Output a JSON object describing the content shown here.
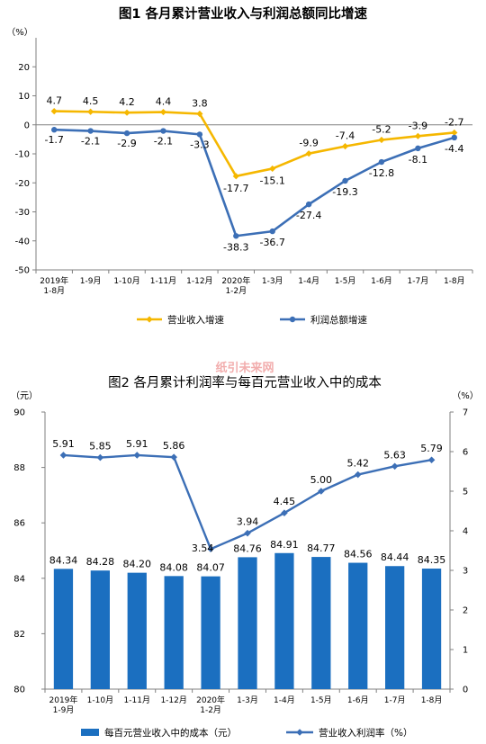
{
  "watermark": "纸引未来网",
  "chart_data": [
    {
      "type": "line",
      "title": "图1  各月累计营业收入与利润总额同比增速",
      "yunit": "（%）",
      "categories": [
        "2019年\n1-8月",
        "1-9月",
        "1-10月",
        "1-11月",
        "1-12月",
        "2020年\n1-2月",
        "1-3月",
        "1-4月",
        "1-5月",
        "1-6月",
        "1-7月",
        "1-8月"
      ],
      "ylim": [
        -50,
        30
      ],
      "yticks": [
        -50,
        -40,
        -30,
        -20,
        -10,
        0,
        10,
        20
      ],
      "grid": false,
      "legend_position": "bottom",
      "series": [
        {
          "name": "营业收入增速",
          "color": "#F5B700",
          "marker": "diamond",
          "values": [
            4.7,
            4.5,
            4.2,
            4.4,
            3.8,
            -17.7,
            -15.1,
            -9.9,
            -7.4,
            -5.2,
            -3.9,
            -2.7
          ],
          "labels": [
            "4.7",
            "4.5",
            "4.2",
            "4.4",
            "3.8",
            "-17.7",
            "-15.1",
            "-9.9",
            "-7.4",
            "-5.2",
            "-3.9",
            "-2.7"
          ]
        },
        {
          "name": "利润总额增速",
          "color": "#3C6FB6",
          "marker": "circle",
          "values": [
            -1.7,
            -2.1,
            -2.9,
            -2.1,
            -3.3,
            -38.3,
            -36.7,
            -27.4,
            -19.3,
            -12.8,
            -8.1,
            -4.4
          ],
          "labels": [
            "-1.7",
            "-2.1",
            "-2.9",
            "-2.1",
            "-3.3",
            "-38.3",
            "-36.7",
            "-27.4",
            "-19.3",
            "-12.8",
            "-8.1",
            "-4.4"
          ]
        }
      ]
    },
    {
      "type": "bar+line",
      "title": "图2  各月累计利润率与每百元营业收入中的成本",
      "yunit_left": "（元）",
      "yunit_right": "（%）",
      "categories": [
        "2019年\n1-9月",
        "1-10月",
        "1-11月",
        "1-12月",
        "2020年\n1-2月",
        "1-3月",
        "1-4月",
        "1-5月",
        "1-6月",
        "1-7月",
        "1-8月"
      ],
      "ylim_left": [
        80,
        90
      ],
      "yticks_left": [
        80,
        82,
        84,
        86,
        88,
        90
      ],
      "ylim_right": [
        0,
        7
      ],
      "yticks_right": [
        0,
        1,
        2,
        3,
        4,
        5,
        6,
        7
      ],
      "grid": false,
      "legend_position": "bottom",
      "bar_series": {
        "name": "每百元营业收入中的成本（元）",
        "color": "#1B6FC0",
        "values": [
          84.34,
          84.28,
          84.2,
          84.08,
          84.07,
          84.76,
          84.91,
          84.77,
          84.56,
          84.44,
          84.35
        ],
        "labels": [
          "84.34",
          "84.28",
          "84.20",
          "84.08",
          "84.07",
          "84.76",
          "84.91",
          "84.77",
          "84.56",
          "84.44",
          "84.35"
        ]
      },
      "line_series": {
        "name": "营业收入利润率（%）",
        "color": "#3C6FB6",
        "marker": "diamond",
        "values": [
          5.91,
          5.85,
          5.91,
          5.86,
          3.54,
          3.94,
          4.45,
          5.0,
          5.42,
          5.63,
          5.79
        ],
        "labels": [
          "5.91",
          "5.85",
          "5.91",
          "5.86",
          "3.54",
          "3.94",
          "4.45",
          "5.00",
          "5.42",
          "5.63",
          "5.79"
        ]
      }
    }
  ]
}
